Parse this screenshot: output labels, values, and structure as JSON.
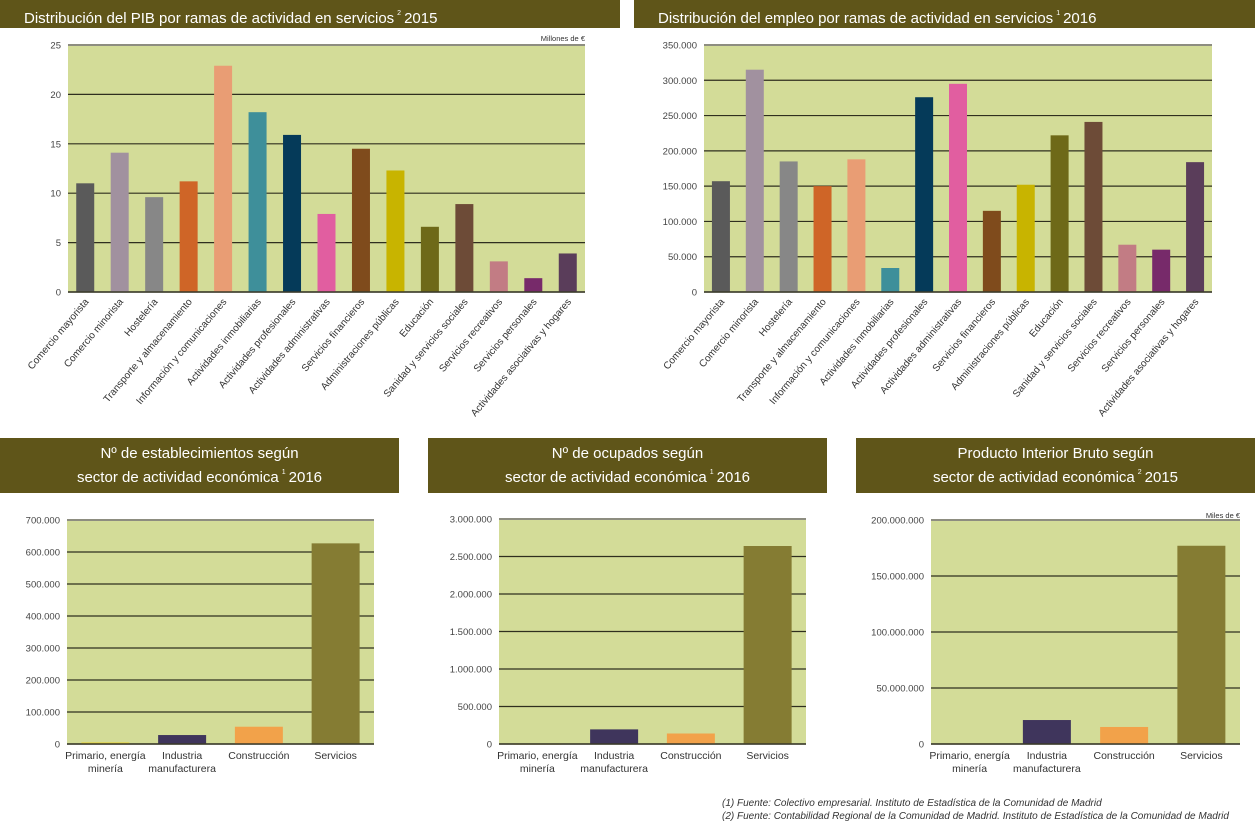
{
  "colors": {
    "header_bg": "#5f5519",
    "plot_bg": "#d3dc98",
    "grid": "#2f2f1f"
  },
  "chart_data": [
    {
      "id": "pib-servicios",
      "type": "bar",
      "title": "Distribución del PIB por ramas de actividad en servicios",
      "title_note": "2",
      "title_year": "2015",
      "unit_label": "Millones de €",
      "xlabel": "",
      "ylabel": "",
      "ylim": [
        0,
        25
      ],
      "yticks": [
        0,
        5,
        10,
        15,
        20,
        25
      ],
      "ytick_labels": [
        "0",
        "5",
        "10",
        "15",
        "20",
        "25"
      ],
      "grid": true,
      "categories": [
        "Comercio mayorista",
        "Comercio minorista",
        "Hostelería",
        "Transporte y almacenamiento",
        "Información y comunicaciones",
        "Actividades inmobiliarias",
        "Actividades profesionales",
        "Actividades administrativas",
        "Servicios financieros",
        "Administraciones públicas",
        "Educación",
        "Sanidad y servicios sociales",
        "Servicios recreativos",
        "Servicios personales",
        "Actividades asociativas y hogares"
      ],
      "values": [
        11.0,
        14.1,
        9.6,
        11.2,
        22.9,
        18.2,
        15.9,
        7.9,
        14.5,
        12.3,
        6.6,
        8.9,
        3.1,
        1.4,
        3.9
      ],
      "colors": [
        "#5a5a5a",
        "#a1919f",
        "#878787",
        "#cf6527",
        "#e99d74",
        "#3e8f9a",
        "#053a59",
        "#e15ea0",
        "#7f4b1c",
        "#c8b400",
        "#6e6918",
        "#6d4b37",
        "#c27c84",
        "#772a6a",
        "#5a3d5a"
      ]
    },
    {
      "id": "empleo-servicios",
      "type": "bar",
      "title": "Distribución del empleo por ramas de actividad en servicios",
      "title_note": "1",
      "title_year": "2016",
      "unit_label": "",
      "xlabel": "",
      "ylabel": "",
      "ylim": [
        0,
        350000
      ],
      "yticks": [
        0,
        50000,
        100000,
        150000,
        200000,
        250000,
        300000,
        350000
      ],
      "ytick_labels": [
        "0",
        "50.000",
        "100.000",
        "150.000",
        "200.000",
        "250.000",
        "300.000",
        "350.000"
      ],
      "grid": true,
      "categories": [
        "Comercio mayorista",
        "Comercio minorista",
        "Hostelería",
        "Transporte y almacenamiento",
        "Información y comunicaciones",
        "Actividades inmobiliarias",
        "Actividades profesionales",
        "Actividades administrativas",
        "Servicios financieros",
        "Administraciones públicas",
        "Educación",
        "Sanidad y servicios sociales",
        "Servicios recreativos",
        "Servicios personales",
        "Actividades asociativas y hogares"
      ],
      "values": [
        157000,
        315000,
        185000,
        150000,
        188000,
        34000,
        276000,
        295000,
        115000,
        152000,
        222000,
        241000,
        67000,
        60000,
        184000
      ],
      "colors": [
        "#5a5a5a",
        "#a1919f",
        "#878787",
        "#cf6527",
        "#e99d74",
        "#3e8f9a",
        "#053a59",
        "#e15ea0",
        "#7f4b1c",
        "#c8b400",
        "#6e6918",
        "#6d4b37",
        "#c27c84",
        "#772a6a",
        "#5a3d5a"
      ]
    },
    {
      "id": "establecimientos-sector",
      "type": "bar",
      "title_line1": "Nº de establecimientos según",
      "title_line2": "sector de actividad económica",
      "title_note": "1",
      "title_year": "2016",
      "unit_label": "",
      "xlabel": "",
      "ylabel": "",
      "ylim": [
        0,
        700000
      ],
      "yticks": [
        0,
        100000,
        200000,
        300000,
        400000,
        500000,
        600000,
        700000
      ],
      "ytick_labels": [
        "0",
        "100.000",
        "200.000",
        "300.000",
        "400.000",
        "500.000",
        "600.000",
        "700.000"
      ],
      "grid": true,
      "categories": [
        [
          "Primario, energía",
          "minería"
        ],
        [
          "Industria",
          "manufacturera"
        ],
        [
          "Construcción"
        ],
        [
          "Servicios"
        ]
      ],
      "values": [
        5000,
        28000,
        54000,
        627000
      ],
      "colors": [
        "#e6d23c",
        "#3f355c",
        "#f2a24a",
        "#857c33"
      ]
    },
    {
      "id": "ocupados-sector",
      "type": "bar",
      "title_line1": "Nº de ocupados según",
      "title_line2": "sector de actividad económica",
      "title_note": "1",
      "title_year": "2016",
      "unit_label": "",
      "xlabel": "",
      "ylabel": "",
      "ylim": [
        0,
        3000000
      ],
      "yticks": [
        0,
        500000,
        1000000,
        1500000,
        2000000,
        2500000,
        3000000
      ],
      "ytick_labels": [
        "0",
        "500.000",
        "1.000.000",
        "1.500.000",
        "2.000.000",
        "2.500.000",
        "3.000.000"
      ],
      "grid": true,
      "categories": [
        [
          "Primario, energía",
          "minería"
        ],
        [
          "Industria",
          "manufacturera"
        ],
        [
          "Construcción"
        ],
        [
          "Servicios"
        ]
      ],
      "values": [
        5000,
        195000,
        140000,
        2640000
      ],
      "colors": [
        "#e6d23c",
        "#3f355c",
        "#f2a24a",
        "#857c33"
      ]
    },
    {
      "id": "pib-sector",
      "type": "bar",
      "title_line1": "Producto Interior Bruto según",
      "title_line2": "sector de actividad económica",
      "title_note": "2",
      "title_year": "2015",
      "unit_label": "Miles de €",
      "xlabel": "",
      "ylabel": "",
      "ylim": [
        0,
        200000000
      ],
      "yticks": [
        0,
        50000000,
        100000000,
        150000000,
        200000000
      ],
      "ytick_labels": [
        "0",
        "50.000.000",
        "100.000.000",
        "150.000.000",
        "200.000.000"
      ],
      "grid": true,
      "categories": [
        [
          "Primario, energía",
          "minería"
        ],
        [
          "Industria",
          "manufacturera"
        ],
        [
          "Construcción"
        ],
        [
          "Servicios"
        ]
      ],
      "values": [
        500000,
        21400000,
        15200000,
        177000000
      ],
      "colors": [
        "#e6d23c",
        "#3f355c",
        "#f2a24a",
        "#857c33"
      ]
    }
  ],
  "footnotes": [
    "(1) Fuente: Colectivo empresarial. Instituto de Estadística de la Comunidad de Madrid",
    "(2) Fuente: Contabilidad Regional de la Comunidad de Madrid. Instituto de Estadística de la Comunidad de Madrid"
  ]
}
